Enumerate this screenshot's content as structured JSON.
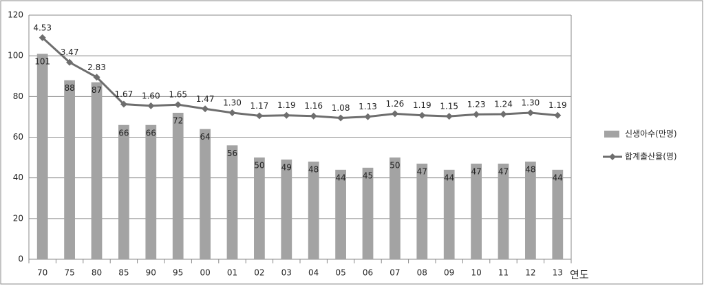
{
  "chart_data": {
    "type": "bar_line",
    "x_label": "연도",
    "categories": [
      "70",
      "75",
      "80",
      "85",
      "90",
      "95",
      "00",
      "01",
      "02",
      "03",
      "04",
      "05",
      "06",
      "07",
      "08",
      "09",
      "10",
      "11",
      "12",
      "13"
    ],
    "series": [
      {
        "name": "신생아수(만명)",
        "type": "bar",
        "color": "#a3a3a3",
        "values": [
          101,
          88,
          87,
          66,
          66,
          72,
          64,
          56,
          50,
          49,
          48,
          44,
          45,
          50,
          47,
          44,
          47,
          47,
          48,
          44
        ]
      },
      {
        "name": "합계출산율(명)",
        "type": "line",
        "axis": "y2",
        "color": "#6e6e6e",
        "values": [
          4.53,
          3.47,
          2.83,
          1.67,
          1.6,
          1.65,
          1.47,
          1.3,
          1.17,
          1.19,
          1.16,
          1.08,
          1.13,
          1.26,
          1.19,
          1.15,
          1.23,
          1.24,
          1.3,
          1.19
        ],
        "value_labels": [
          "4.53",
          "3.47",
          "2.83",
          "1.67",
          "1.60",
          "1.65",
          "1.47",
          "1.30",
          "1.17",
          "1.19",
          "1.16",
          "1.08",
          "1.13",
          "1.26",
          "1.19",
          "1.15",
          "1.23",
          "1.24",
          "1.30",
          "1.19"
        ]
      }
    ],
    "ylim": [
      0,
      120
    ],
    "yticks": [
      0,
      20,
      40,
      60,
      80,
      100,
      120
    ],
    "y2lim": [
      -5,
      5.5
    ],
    "grid": true,
    "legend": "right"
  }
}
